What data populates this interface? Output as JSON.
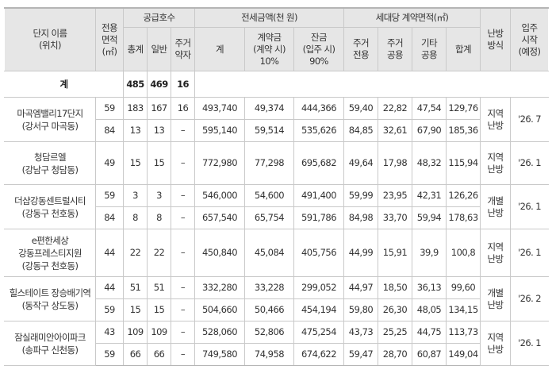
{
  "headers": {
    "complex": [
      "단지 이름",
      "(위치)"
    ],
    "area": [
      "전용",
      "면적",
      "(㎡)"
    ],
    "supply": "공급호수",
    "supply_total": "총계",
    "supply_general": "일반",
    "supply_weak": [
      "주거",
      "약자"
    ],
    "price": "전세금액(천 원)",
    "price_total": "계",
    "price_deposit": [
      "계약금",
      "(계약 시)",
      "10%"
    ],
    "price_balance": [
      "잔금",
      "(입주 시)",
      "90%"
    ],
    "contract_area": "세대당 계약면적(㎡)",
    "ca_private": [
      "주거",
      "전용"
    ],
    "ca_common": [
      "주거",
      "공용"
    ],
    "ca_other": [
      "기타",
      "공용"
    ],
    "ca_sum": "합계",
    "heating": [
      "난방",
      "방식"
    ],
    "move_in": [
      "입주",
      "시작",
      "(예정)"
    ]
  },
  "total_row": {
    "label": "계",
    "total": "485",
    "general": "469",
    "weak": "16"
  },
  "rows": [
    {
      "name": [
        "마곡엠밸리17단지",
        "(강서구 마곡동)"
      ],
      "area": "59",
      "total": "183",
      "general": "167",
      "weak": "16",
      "price": "493,740",
      "deposit": "49,374",
      "balance": "444,366",
      "private": "59,40",
      "common": "22,82",
      "other": "47,54",
      "sum": "129,76",
      "heating": [
        "지역",
        "난방"
      ],
      "move_in": "'26. 7"
    },
    {
      "area": "84",
      "total": "13",
      "general": "13",
      "weak": "–",
      "price": "595,140",
      "deposit": "59,514",
      "balance": "535,626",
      "private": "84,85",
      "common": "32,61",
      "other": "67,90",
      "sum": "185,36"
    },
    {
      "name": [
        "청담르엘",
        "(강남구 청담동)"
      ],
      "area": "49",
      "total": "15",
      "general": "15",
      "weak": "–",
      "price": "772,980",
      "deposit": "77,298",
      "balance": "695,682",
      "private": "49,64",
      "common": "17,98",
      "other": "48,32",
      "sum": "115,94",
      "heating": [
        "지역",
        "난방"
      ],
      "move_in": "'26. 1"
    },
    {
      "name": [
        "더샵강동센트럴시티",
        "(강동구 천호동)"
      ],
      "area": "59",
      "total": "3",
      "general": "3",
      "weak": "–",
      "price": "546,000",
      "deposit": "54,600",
      "balance": "491,400",
      "private": "59,99",
      "common": "23,95",
      "other": "42,31",
      "sum": "126,26",
      "heating": [
        "개별",
        "난방"
      ],
      "move_in": "'26. 1"
    },
    {
      "area": "84",
      "total": "8",
      "general": "8",
      "weak": "–",
      "price": "657,540",
      "deposit": "65,754",
      "balance": "591,786",
      "private": "84,98",
      "common": "33,70",
      "other": "59,94",
      "sum": "178,63"
    },
    {
      "name": [
        "e편한세상",
        "강동프레스티지원",
        "(강동구 천호동)"
      ],
      "area": "44",
      "total": "22",
      "general": "22",
      "weak": "–",
      "price": "450,840",
      "deposit": "45,084",
      "balance": "405,756",
      "private": "44,99",
      "common": "15,91",
      "other": "39,9",
      "sum": "100,8",
      "heating": [
        "지역",
        "난방"
      ],
      "move_in": "'26. 1"
    },
    {
      "name": [
        "힐스테이트 장승배기역",
        "(동작구 상도동)"
      ],
      "area": "44",
      "total": "51",
      "general": "51",
      "weak": "–",
      "price": "332,280",
      "deposit": "33,228",
      "balance": "299,052",
      "private": "44,97",
      "common": "18,50",
      "other": "36,13",
      "sum": "99,60",
      "heating": [
        "개별",
        "난방"
      ],
      "move_in": "'26. 2"
    },
    {
      "area": "59",
      "total": "15",
      "general": "15",
      "weak": "–",
      "price": "504,660",
      "deposit": "50,466",
      "balance": "454,194",
      "private": "59,80",
      "common": "26,30",
      "other": "48,05",
      "sum": "134,15"
    },
    {
      "name": [
        "잠실래미안아이파크",
        "(송파구 신천동)"
      ],
      "area": "43",
      "total": "109",
      "general": "109",
      "weak": "–",
      "price": "528,060",
      "deposit": "52,806",
      "balance": "475,254",
      "private": "43,73",
      "common": "25,25",
      "other": "44,75",
      "sum": "113,73",
      "heating": [
        "지역",
        "난방"
      ],
      "move_in": "'26. 1"
    },
    {
      "area": "59",
      "total": "66",
      "general": "66",
      "weak": "–",
      "price": "749,580",
      "deposit": "74,958",
      "balance": "674,622",
      "private": "59,47",
      "common": "28,70",
      "other": "60,87",
      "sum": "149,04"
    }
  ]
}
